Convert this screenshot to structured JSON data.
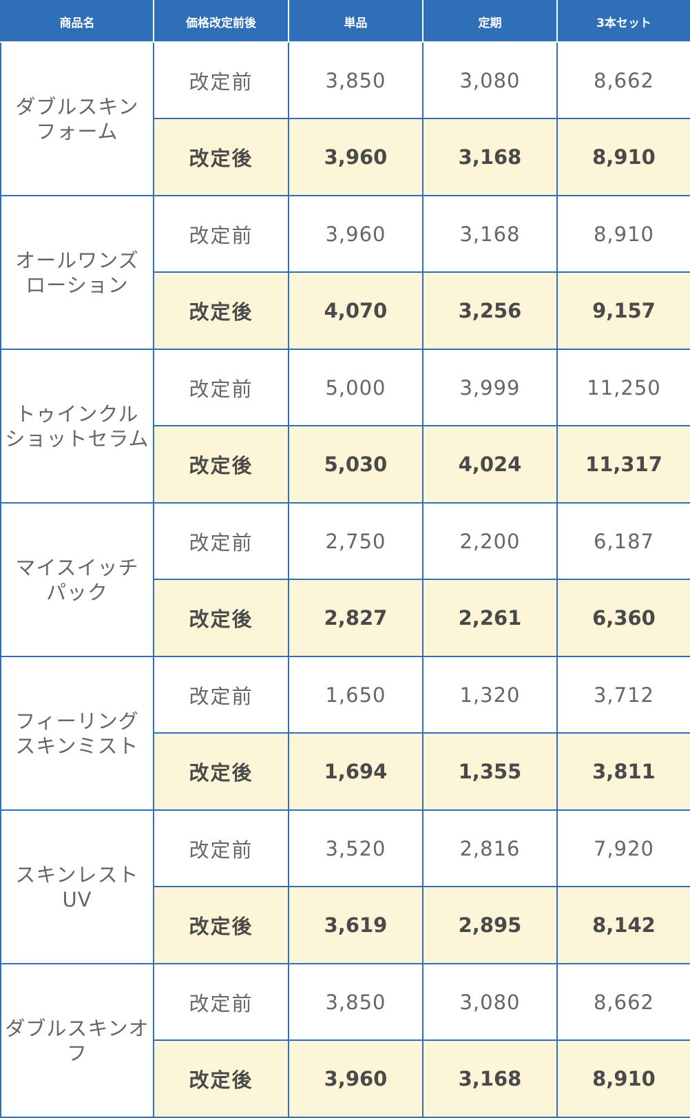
{
  "table": {
    "headers": [
      "商品名",
      "価格改定前後",
      "単品",
      "定期",
      "3本セット"
    ],
    "before_label": "改定前",
    "after_label": "改定後",
    "rows": [
      {
        "name_lines": [
          "ダブルスキン",
          "フォーム"
        ],
        "before": [
          "3,850",
          "3,080",
          "8,662"
        ],
        "after": [
          "3,960",
          "3,168",
          "8,910"
        ]
      },
      {
        "name_lines": [
          "オールワンズ",
          "ローション"
        ],
        "before": [
          "3,960",
          "3,168",
          "8,910"
        ],
        "after": [
          "4,070",
          "3,256",
          "9,157"
        ]
      },
      {
        "name_lines": [
          "トゥインクル",
          "ショットセラム"
        ],
        "before": [
          "5,000",
          "3,999",
          "11,250"
        ],
        "after": [
          "5,030",
          "4,024",
          "11,317"
        ]
      },
      {
        "name_lines": [
          "マイスイッチ",
          "パック"
        ],
        "before": [
          "2,750",
          "2,200",
          "6,187"
        ],
        "after": [
          "2,827",
          "2,261",
          "6,360"
        ]
      },
      {
        "name_lines": [
          "フィーリング",
          "スキンミスト"
        ],
        "before": [
          "1,650",
          "1,320",
          "3,712"
        ],
        "after": [
          "1,694",
          "1,355",
          "3,811"
        ]
      },
      {
        "name_lines": [
          "スキンレストUV"
        ],
        "before": [
          "3,520",
          "2,816",
          "7,920"
        ],
        "after": [
          "3,619",
          "2,895",
          "8,142"
        ]
      },
      {
        "name_lines": [
          "ダブルスキンオフ"
        ],
        "before": [
          "3,850",
          "3,080",
          "8,662"
        ],
        "after": [
          "3,960",
          "3,168",
          "8,910"
        ]
      }
    ]
  },
  "colors": {
    "header_bg": "#2f6fb7",
    "border": "#2f6fb7",
    "after_row_bg": "#fdf5d8",
    "before_row_bg": "#ffffff"
  }
}
